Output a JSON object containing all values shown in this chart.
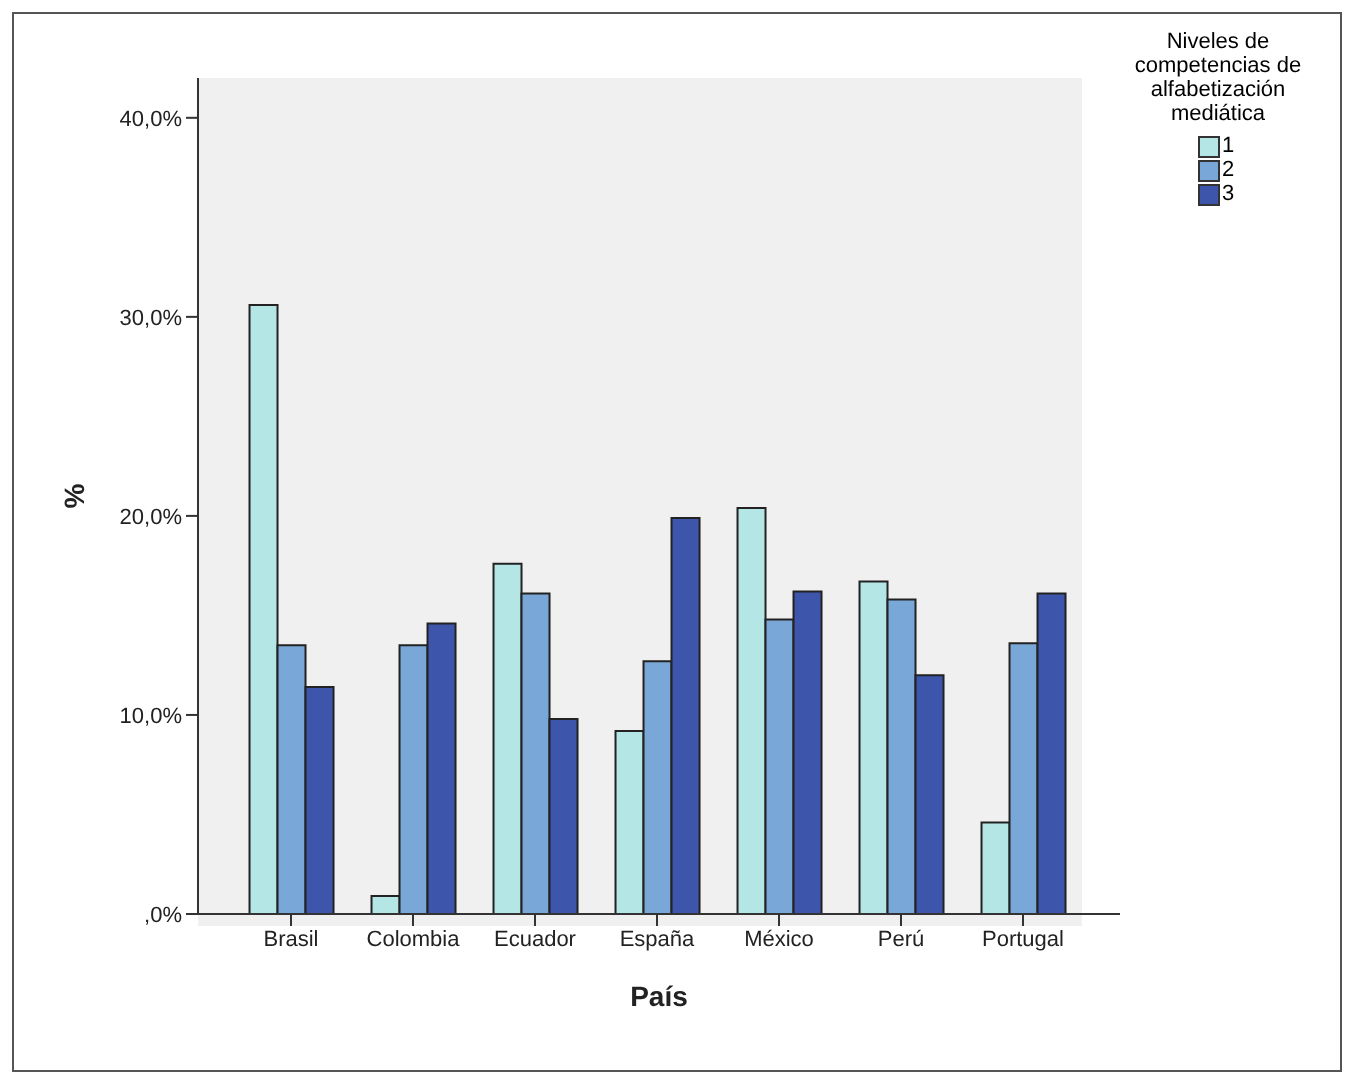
{
  "chart_data": {
    "type": "bar",
    "xlabel": "País",
    "ylabel": "%",
    "legend_title": "Niveles de competencias de alfabetización mediática",
    "categories": [
      "Brasil",
      "Colombia",
      "Ecuador",
      "España",
      "México",
      "Perú",
      "Portugal"
    ],
    "series": [
      {
        "name": "1",
        "color": "#b4e6e6",
        "values": [
          30.6,
          0.9,
          17.6,
          9.2,
          20.4,
          16.7,
          4.6
        ]
      },
      {
        "name": "2",
        "color": "#79a7d7",
        "values": [
          13.5,
          13.5,
          16.1,
          12.7,
          14.8,
          15.8,
          13.6
        ]
      },
      {
        "name": "3",
        "color": "#3d56ab",
        "values": [
          11.4,
          14.6,
          9.8,
          19.9,
          16.2,
          12.0,
          16.1
        ]
      }
    ],
    "ylim": [
      0,
      42
    ],
    "yticks": [
      {
        "value": 0,
        "label": ",0%"
      },
      {
        "value": 10,
        "label": "10,0%"
      },
      {
        "value": 20,
        "label": "20,0%"
      },
      {
        "value": 30,
        "label": "30,0%"
      },
      {
        "value": 40,
        "label": "40,0%"
      }
    ],
    "grid": false,
    "legend": "right"
  }
}
